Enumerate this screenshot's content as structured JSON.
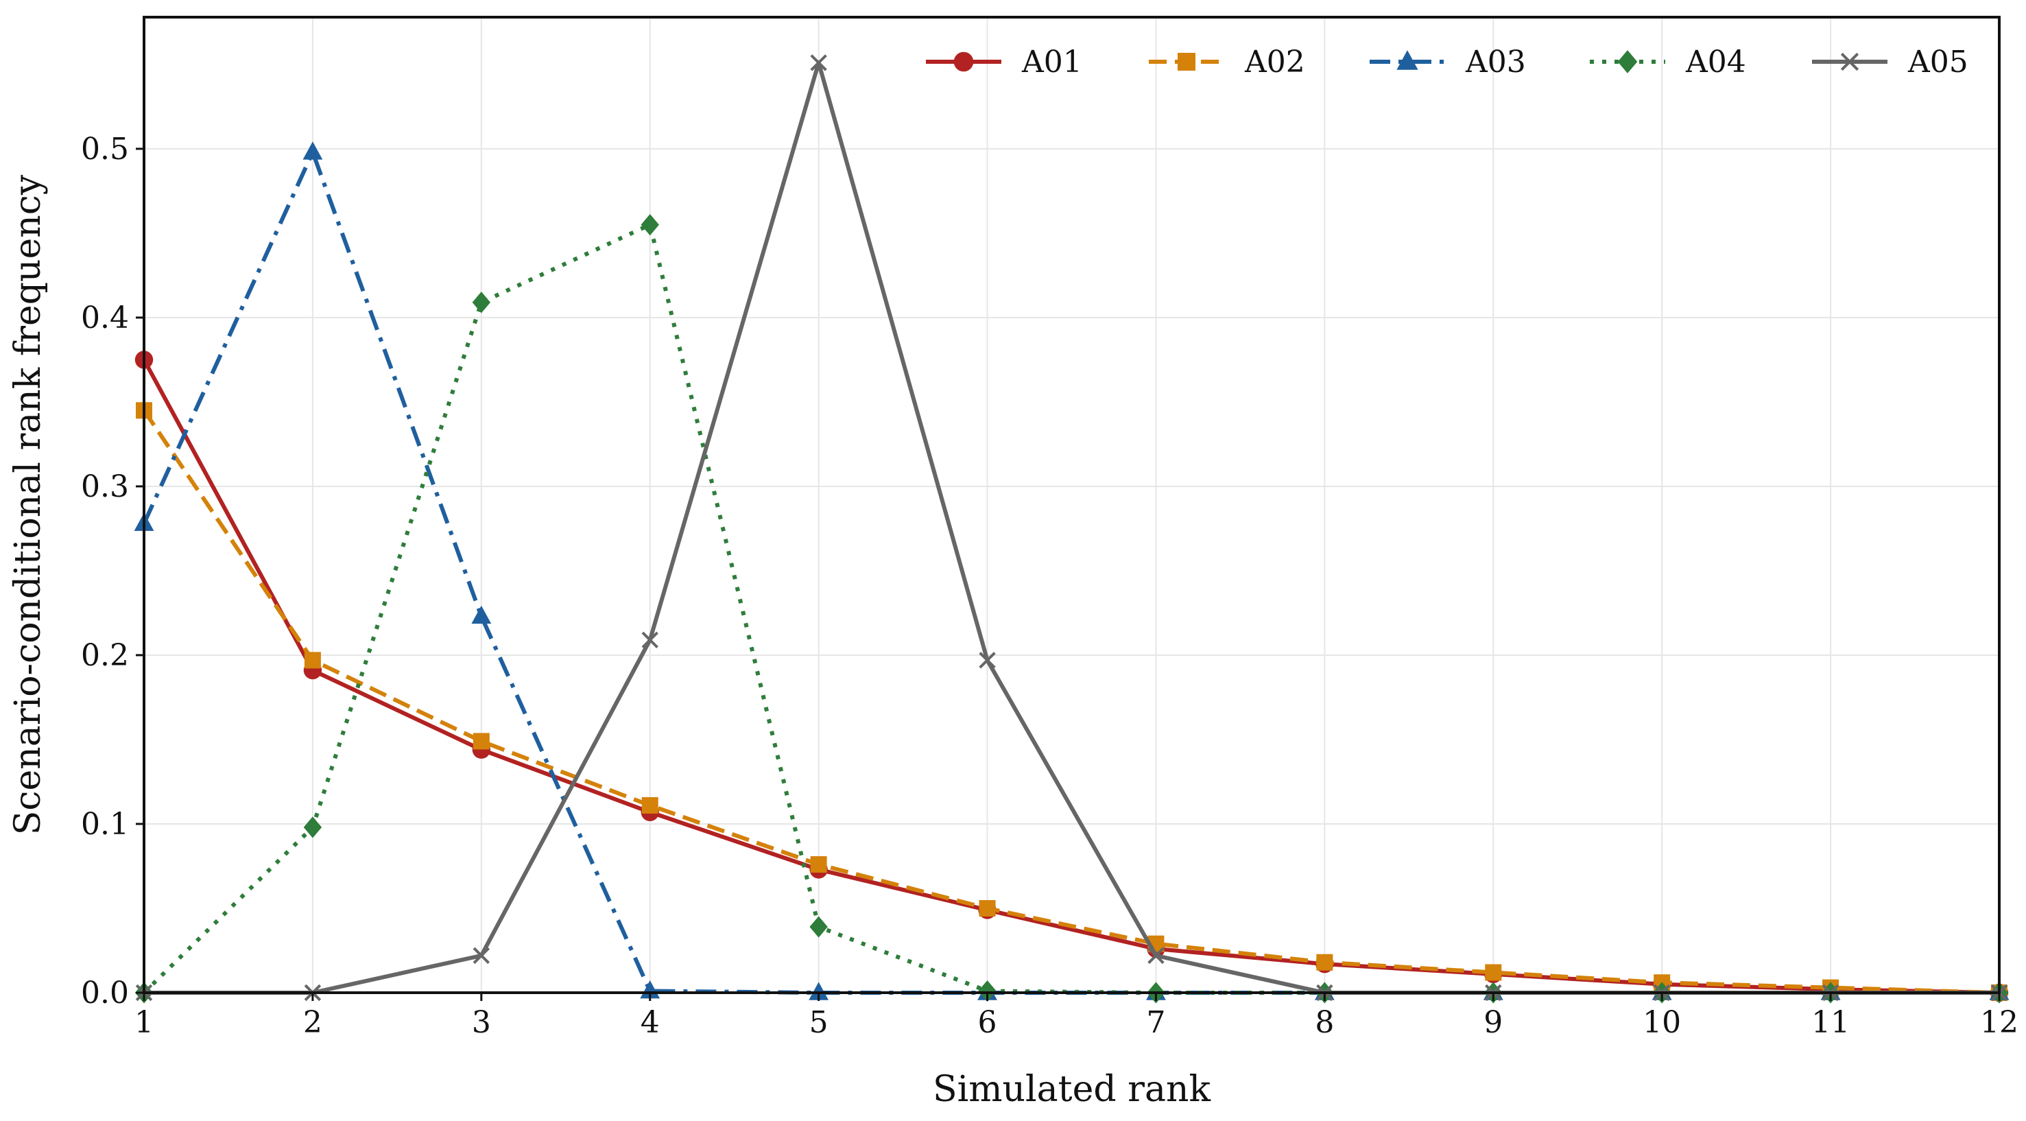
{
  "chart_data": {
    "type": "line",
    "title": "",
    "xlabel": "Simulated rank",
    "ylabel": "Scenario-conditional rank frequency",
    "xlim": [
      1,
      12
    ],
    "ylim": [
      0.0,
      0.578
    ],
    "xticks": [
      1,
      2,
      3,
      4,
      5,
      6,
      7,
      8,
      9,
      10,
      11,
      12
    ],
    "yticks": [
      0.0,
      0.1,
      0.2,
      0.3,
      0.4,
      0.5
    ],
    "ytick_labels": [
      "0.0",
      "0.1",
      "0.2",
      "0.3",
      "0.4",
      "0.5"
    ],
    "grid": true,
    "legend_position": "top-right",
    "x": [
      1,
      2,
      3,
      4,
      5,
      6,
      7,
      8,
      9,
      10,
      11,
      12
    ],
    "series": [
      {
        "name": "A01",
        "color": "#b22222",
        "line_style": "solid",
        "marker": "circle",
        "values": [
          0.375,
          0.191,
          0.144,
          0.107,
          0.073,
          0.049,
          0.026,
          0.017,
          0.011,
          0.005,
          0.002,
          0.0
        ]
      },
      {
        "name": "A02",
        "color": "#d4820a",
        "line_style": "dashed",
        "marker": "square",
        "values": [
          0.345,
          0.197,
          0.149,
          0.111,
          0.076,
          0.05,
          0.029,
          0.018,
          0.012,
          0.006,
          0.003,
          0.0
        ]
      },
      {
        "name": "A03",
        "color": "#1f5f9e",
        "line_style": "dashdot",
        "marker": "triangle",
        "values": [
          0.278,
          0.498,
          0.223,
          0.001,
          0.0,
          0.0,
          0.0,
          0.0,
          0.0,
          0.0,
          0.0,
          0.0
        ]
      },
      {
        "name": "A04",
        "color": "#2e7d3a",
        "line_style": "dotted",
        "marker": "diamond",
        "values": [
          0.0,
          0.098,
          0.409,
          0.455,
          0.039,
          0.001,
          0.0,
          0.0,
          0.0,
          0.0,
          0.0,
          0.0
        ]
      },
      {
        "name": "A05",
        "color": "#666666",
        "line_style": "solid",
        "marker": "x",
        "values": [
          0.0,
          0.0,
          0.022,
          0.209,
          0.551,
          0.197,
          0.022,
          0.0,
          0.0,
          0.0,
          0.0,
          0.0
        ]
      }
    ]
  }
}
